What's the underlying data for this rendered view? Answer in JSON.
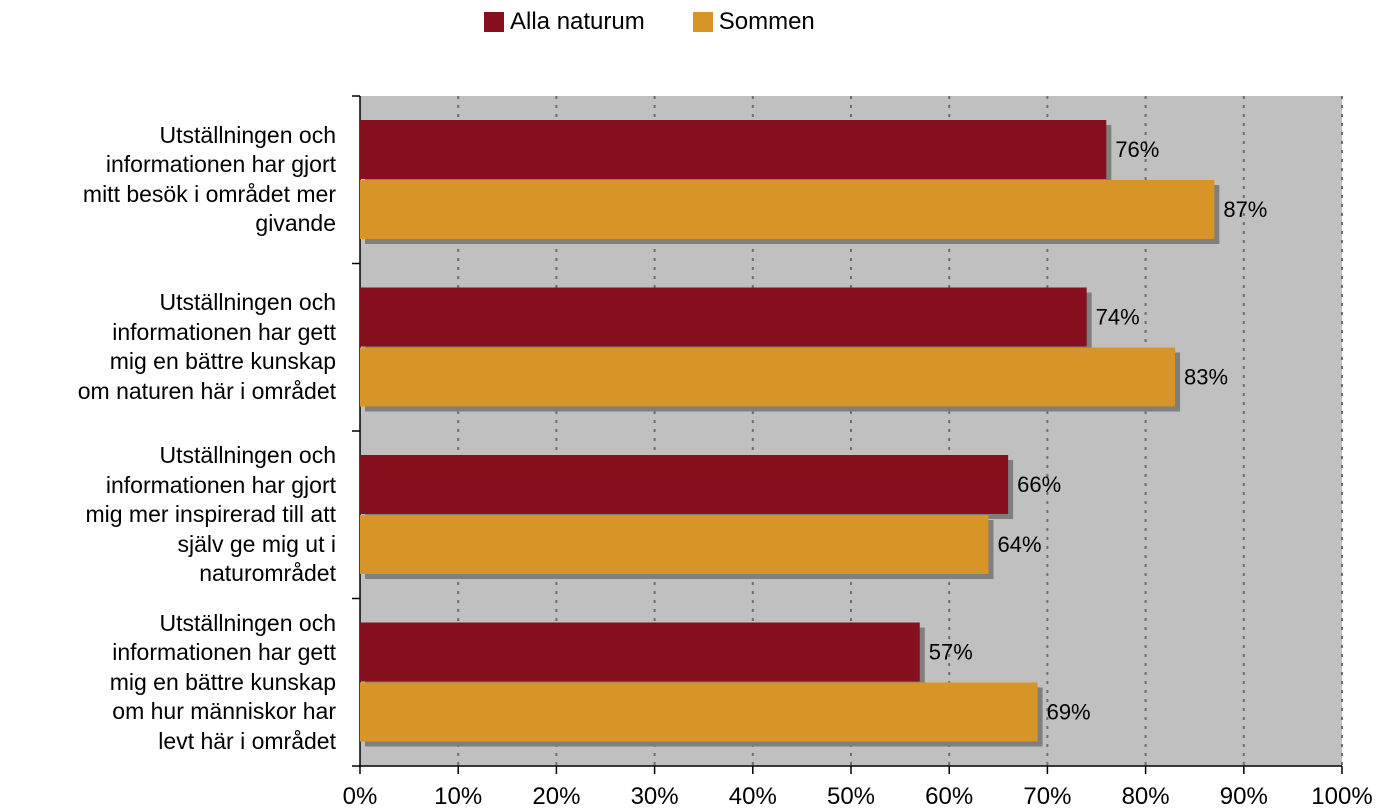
{
  "chart_data": {
    "type": "bar",
    "orientation": "horizontal",
    "categories": [
      "Utställningen och informationen har gjort mitt besök i området mer givande",
      "Utställningen och informationen har gett mig en bättre kunskap om naturen här i området",
      "Utställningen och informationen har gjort mig mer inspirerad till att själv ge mig ut i naturområdet",
      "Utställningen och informationen har gett mig en bättre kunskap om hur människor har levt här i området"
    ],
    "category_lines": [
      [
        "Utställningen och",
        "informationen har gjort",
        "mitt besök i området mer",
        "givande"
      ],
      [
        "Utställningen och",
        "informationen har gett",
        "mig en bättre kunskap",
        "om naturen här i området"
      ],
      [
        "Utställningen och",
        "informationen har gjort",
        "mig mer inspirerad till att",
        "själv ge mig ut i",
        "naturområdet"
      ],
      [
        "Utställningen och",
        "informationen har gett",
        "mig en bättre kunskap",
        "om hur människor har",
        "levt här i området"
      ]
    ],
    "series": [
      {
        "name": "Alla naturum",
        "values": [
          76,
          74,
          66,
          57
        ],
        "labels": [
          "76%",
          "74%",
          "66%",
          "57%"
        ],
        "color": "#87101F"
      },
      {
        "name": "Sommen",
        "values": [
          87,
          83,
          64,
          69
        ],
        "labels": [
          "87%",
          "83%",
          "64%",
          "69%"
        ],
        "color": "#D69526"
      }
    ],
    "xlim": [
      0,
      100
    ],
    "xticks": [
      "0%",
      "10%",
      "20%",
      "30%",
      "40%",
      "50%",
      "60%",
      "70%",
      "80%",
      "90%",
      "100%"
    ],
    "grid": true,
    "legend_position": "top-center",
    "plot_background": "#C0C0C0",
    "shadow_color": "#7F7F7F"
  }
}
